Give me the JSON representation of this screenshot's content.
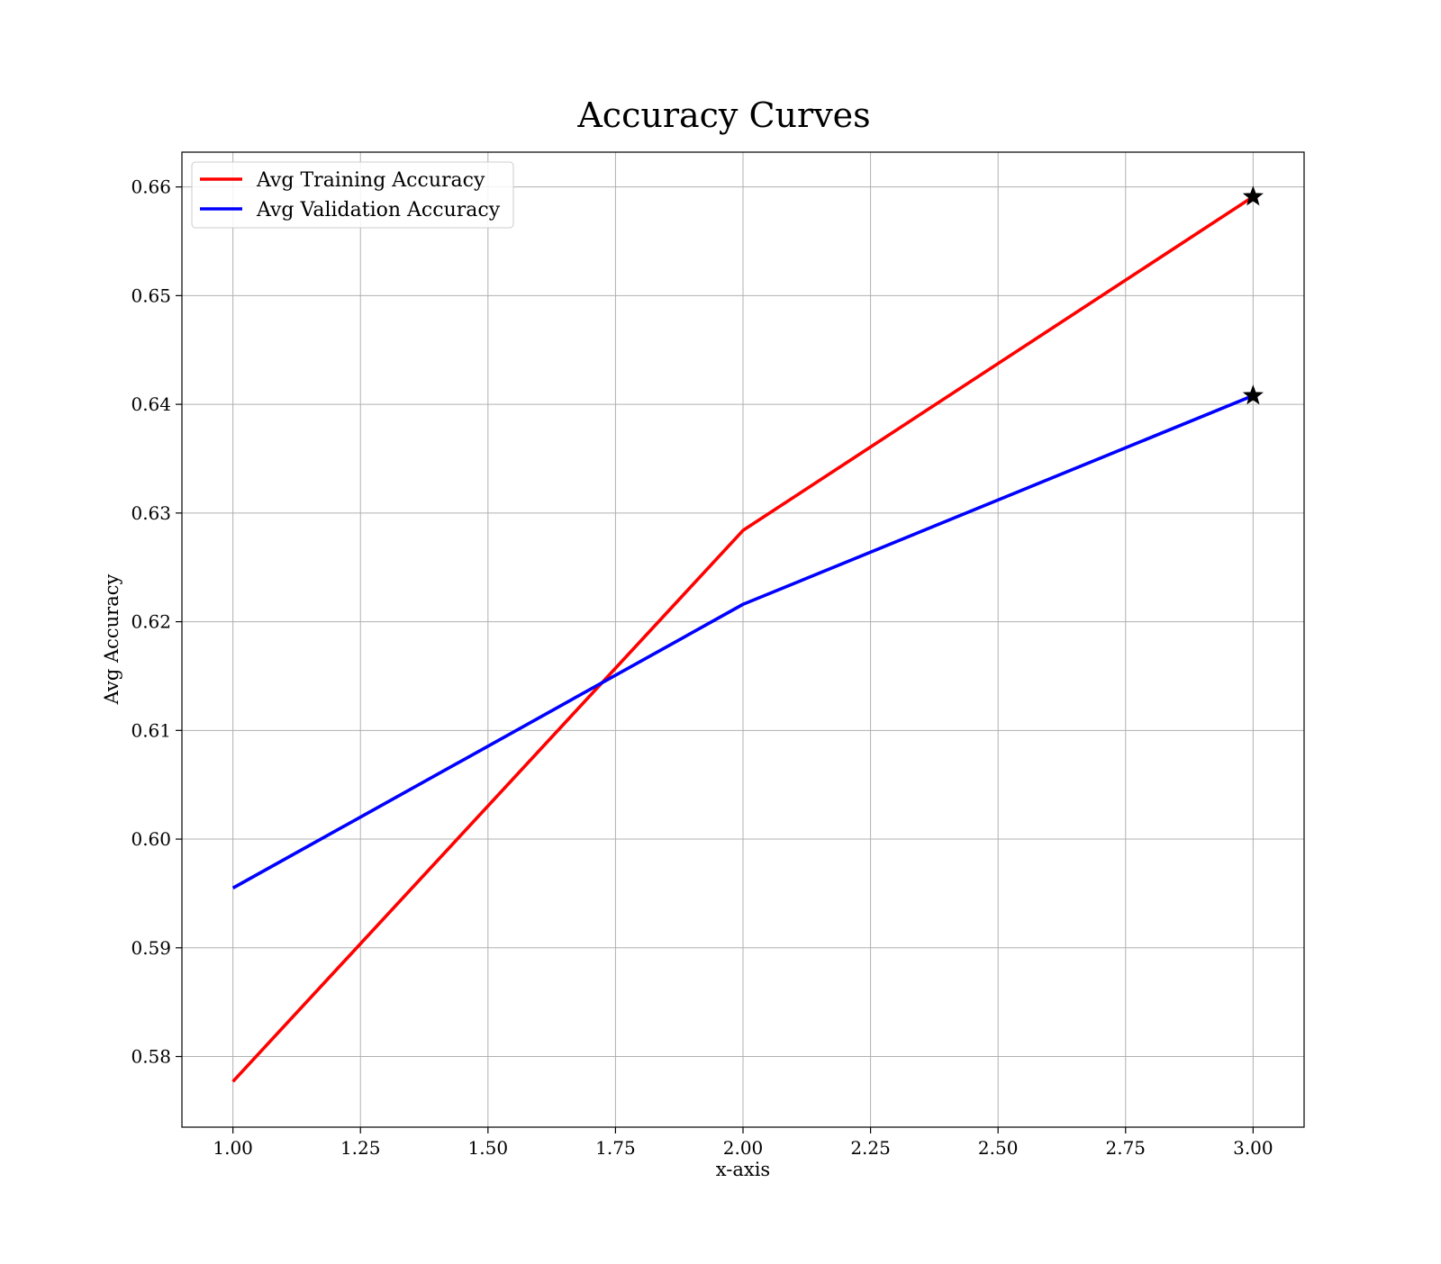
{
  "chart_data": {
    "type": "line",
    "title": "Accuracy Curves",
    "xlabel": "x-axis",
    "ylabel": "Avg Accuracy",
    "xlim": [
      0.9,
      3.1
    ],
    "ylim": [
      0.5735,
      0.6632
    ],
    "x_ticks": [
      1.0,
      1.25,
      1.5,
      1.75,
      2.0,
      2.25,
      2.5,
      2.75,
      3.0
    ],
    "x_tick_labels": [
      "1.00",
      "1.25",
      "1.50",
      "1.75",
      "2.00",
      "2.25",
      "2.50",
      "2.75",
      "3.00"
    ],
    "y_ticks": [
      0.58,
      0.59,
      0.6,
      0.61,
      0.62,
      0.63,
      0.64,
      0.65,
      0.66
    ],
    "y_tick_labels": [
      "0.58",
      "0.59",
      "0.60",
      "0.61",
      "0.62",
      "0.63",
      "0.64",
      "0.65",
      "0.66"
    ],
    "grid": true,
    "legend_position": "top-left",
    "x": [
      1,
      2,
      3
    ],
    "series": [
      {
        "name": "Avg Training Accuracy",
        "values": [
          0.5777,
          0.6284,
          0.6591
        ],
        "color": "#ff0000"
      },
      {
        "name": "Avg Validation Accuracy",
        "values": [
          0.5955,
          0.6216,
          0.6408
        ],
        "color": "#0000ff"
      }
    ],
    "annotations": [
      {
        "marker": "star-icon",
        "x": 3,
        "y": 0.6591,
        "color": "#000000"
      },
      {
        "marker": "star-icon",
        "x": 3,
        "y": 0.6408,
        "color": "#000000"
      }
    ]
  }
}
